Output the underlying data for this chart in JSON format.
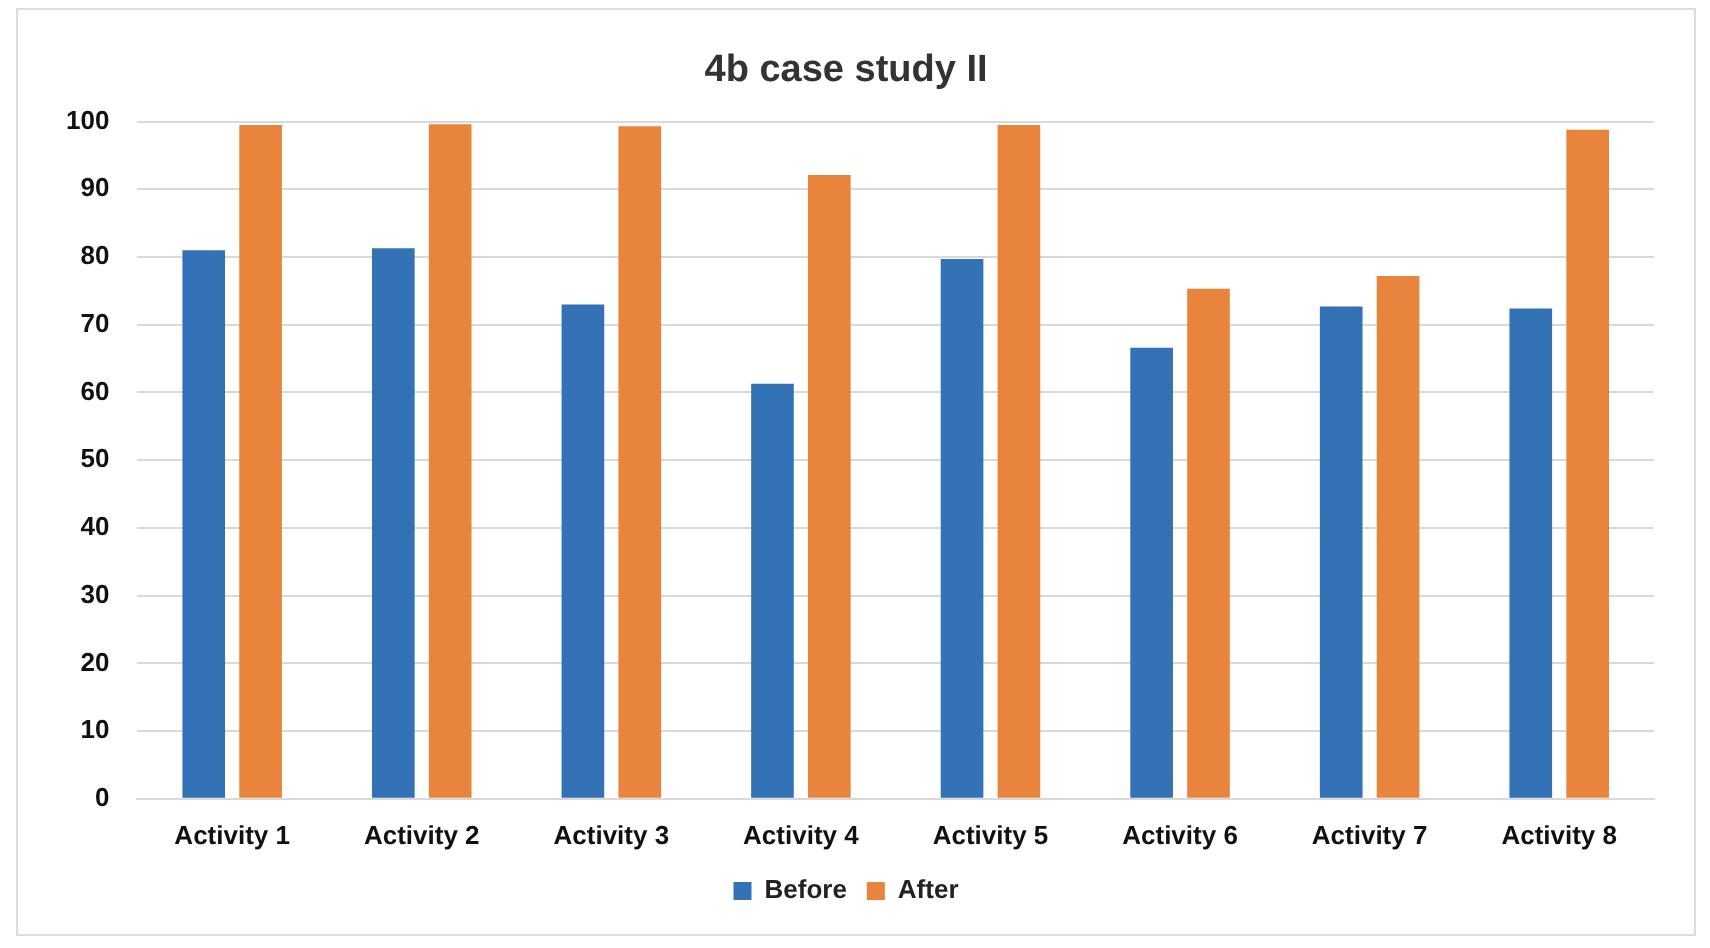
{
  "chart_data": {
    "type": "bar",
    "title": "4b case study II",
    "categories": [
      "Activity 1",
      "Activity 2",
      "Activity 3",
      "Activity 4",
      "Activity 5",
      "Activity 6",
      "Activity 7",
      "Activity 8"
    ],
    "series": [
      {
        "name": "Before",
        "color": "#3272b5",
        "values": [
          81,
          81.3,
          73,
          61.3,
          79.7,
          66.6,
          72.7,
          72.4
        ]
      },
      {
        "name": "After",
        "color": "#e8843b",
        "values": [
          99.5,
          99.6,
          99.3,
          92.1,
          99.5,
          75.3,
          77.2,
          98.8
        ]
      }
    ],
    "ylim": [
      0,
      100
    ],
    "yticks": [
      0,
      10,
      20,
      30,
      40,
      50,
      60,
      70,
      80,
      90,
      100
    ],
    "grid": "y",
    "legend": "bottom"
  }
}
